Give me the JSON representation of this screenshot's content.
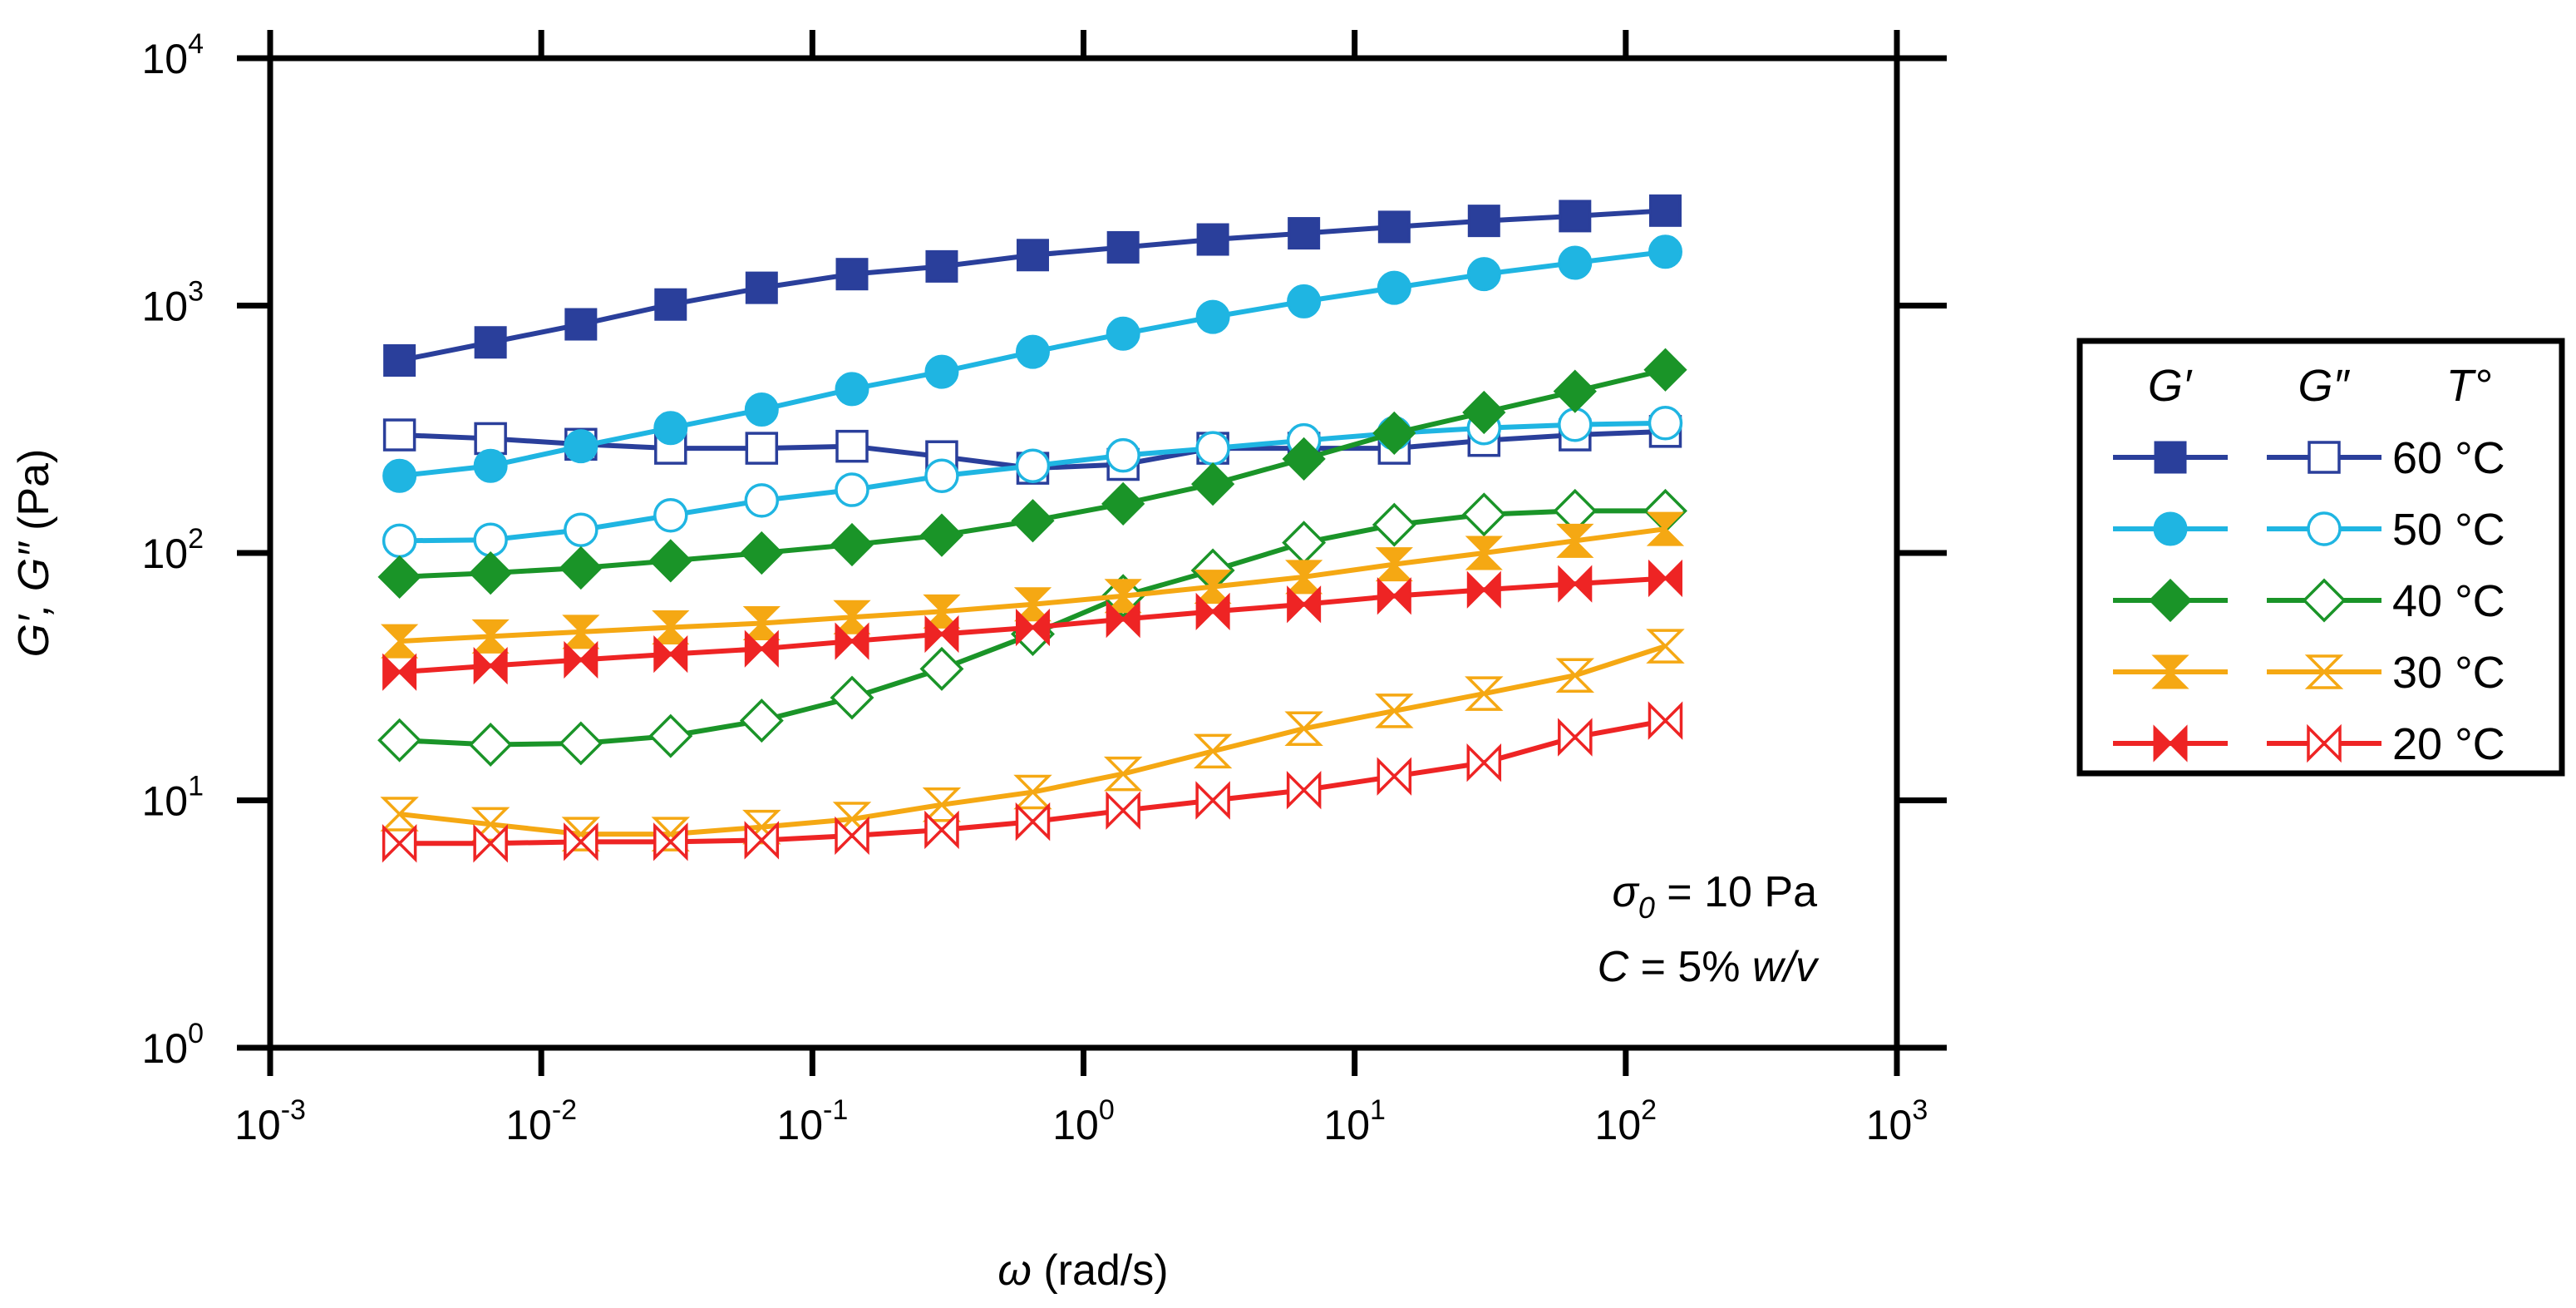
{
  "chart_data": {
    "type": "scatter",
    "title": "",
    "x_axis": {
      "label_symbol": "ω",
      "label_unit": " (rad/s)",
      "scale": "log",
      "range": [
        0.001,
        1000
      ],
      "tick_labels": [
        {
          "base": "10",
          "exp": "-3"
        },
        {
          "base": "10",
          "exp": "-2"
        },
        {
          "base": "10",
          "exp": "-1"
        },
        {
          "base": "10",
          "exp": "0"
        },
        {
          "base": "10",
          "exp": "1"
        },
        {
          "base": "10",
          "exp": "2"
        },
        {
          "base": "10",
          "exp": "3"
        }
      ]
    },
    "y_axis": {
      "label_symbol": "G′, G″",
      "label_unit": " (Pa)",
      "scale": "log",
      "range": [
        1,
        10000
      ],
      "tick_labels": [
        {
          "base": "10",
          "exp": "0"
        },
        {
          "base": "10",
          "exp": "1"
        },
        {
          "base": "10",
          "exp": "2"
        },
        {
          "base": "10",
          "exp": "3"
        },
        {
          "base": "10",
          "exp": "4"
        }
      ]
    },
    "x": [
      0.003,
      0.0065,
      0.014,
      0.03,
      0.065,
      0.14,
      0.3,
      0.65,
      1.4,
      3.0,
      6.5,
      14,
      30,
      65,
      140
    ],
    "series": [
      {
        "name": "G′ 60 °C",
        "modulus": "G'",
        "temperature": "60 °C",
        "color": "#2a3f9b",
        "marker": "square",
        "filled": true,
        "values": [
          600,
          710,
          840,
          1010,
          1180,
          1340,
          1440,
          1600,
          1720,
          1850,
          1960,
          2080,
          2200,
          2300,
          2420
        ]
      },
      {
        "name": "G″ 60 °C",
        "modulus": "G\"",
        "temperature": "60 °C",
        "color": "#2a3f9b",
        "marker": "square",
        "filled": false,
        "values": [
          300,
          290,
          275,
          265,
          265,
          270,
          245,
          220,
          228,
          265,
          265,
          265,
          285,
          300,
          310
        ]
      },
      {
        "name": "G′ 50 °C",
        "modulus": "G'",
        "temperature": "50 °C",
        "color": "#1fb5e2",
        "marker": "circle",
        "filled": true,
        "values": [
          205,
          225,
          270,
          320,
          380,
          460,
          540,
          650,
          770,
          900,
          1040,
          1180,
          1340,
          1490,
          1650
        ]
      },
      {
        "name": "G″ 50 °C",
        "modulus": "G\"",
        "temperature": "50 °C",
        "color": "#1fb5e2",
        "marker": "circle",
        "filled": false,
        "values": [
          112,
          113,
          124,
          142,
          163,
          180,
          205,
          225,
          248,
          265,
          285,
          305,
          320,
          330,
          335
        ]
      },
      {
        "name": "G′ 40 °C",
        "modulus": "G'",
        "temperature": "40 °C",
        "color": "#1a9428",
        "marker": "diamond",
        "filled": true,
        "values": [
          80,
          83,
          87,
          93,
          100,
          108,
          118,
          135,
          158,
          190,
          240,
          305,
          370,
          450,
          550
        ]
      },
      {
        "name": "G″ 40 °C",
        "modulus": "G\"",
        "temperature": "40 °C",
        "color": "#1a9428",
        "marker": "diamond",
        "filled": false,
        "values": [
          17.5,
          16.8,
          17,
          18.2,
          21,
          26,
          34,
          47,
          67,
          85,
          110,
          130,
          143,
          148,
          148
        ]
      },
      {
        "name": "G′ 30 °C",
        "modulus": "G'",
        "temperature": "30 °C",
        "color": "#f5a813",
        "marker": "hourglass",
        "filled": true,
        "values": [
          44,
          46,
          48,
          50,
          52,
          55,
          58,
          62,
          67,
          73,
          80,
          90,
          100,
          112,
          125
        ]
      },
      {
        "name": "G″ 30 °C",
        "modulus": "G\"",
        "temperature": "30 °C",
        "color": "#f5a813",
        "marker": "hourglass",
        "filled": false,
        "values": [
          8.8,
          8.0,
          7.3,
          7.3,
          7.8,
          8.4,
          9.6,
          10.8,
          12.8,
          15.8,
          19.5,
          23,
          27,
          32,
          42
        ]
      },
      {
        "name": "G′ 20 °C",
        "modulus": "G'",
        "temperature": "20 °C",
        "color": "#ee2424",
        "marker": "bowtie",
        "filled": true,
        "values": [
          33,
          35,
          37,
          39,
          41,
          44,
          47,
          50,
          54,
          58,
          62,
          67,
          71,
          75,
          79
        ]
      },
      {
        "name": "G″ 20 °C",
        "modulus": "G\"",
        "temperature": "20 °C",
        "color": "#ee2424",
        "marker": "bowtie",
        "filled": false,
        "values": [
          6.7,
          6.7,
          6.8,
          6.8,
          6.9,
          7.2,
          7.6,
          8.2,
          9.1,
          10,
          11,
          12.5,
          14.2,
          18,
          21
        ]
      }
    ],
    "legend": {
      "position": "right",
      "headers": [
        "G′",
        "G″",
        "T°"
      ],
      "rows": [
        {
          "temperature": "60 °C",
          "color": "#2a3f9b",
          "marker": "square"
        },
        {
          "temperature": "50 °C",
          "color": "#1fb5e2",
          "marker": "circle"
        },
        {
          "temperature": "40 °C",
          "color": "#1a9428",
          "marker": "diamond"
        },
        {
          "temperature": "30 °C",
          "color": "#f5a813",
          "marker": "hourglass"
        },
        {
          "temperature": "20 °C",
          "color": "#ee2424",
          "marker": "bowtie"
        }
      ]
    },
    "annotations": {
      "stress_symbol": "σ",
      "stress_subscript": "0",
      "stress_value": " = 10 Pa",
      "conc_symbol": "C",
      "conc_value": " = 5% ",
      "conc_unit": "w/v"
    },
    "grid": false
  }
}
